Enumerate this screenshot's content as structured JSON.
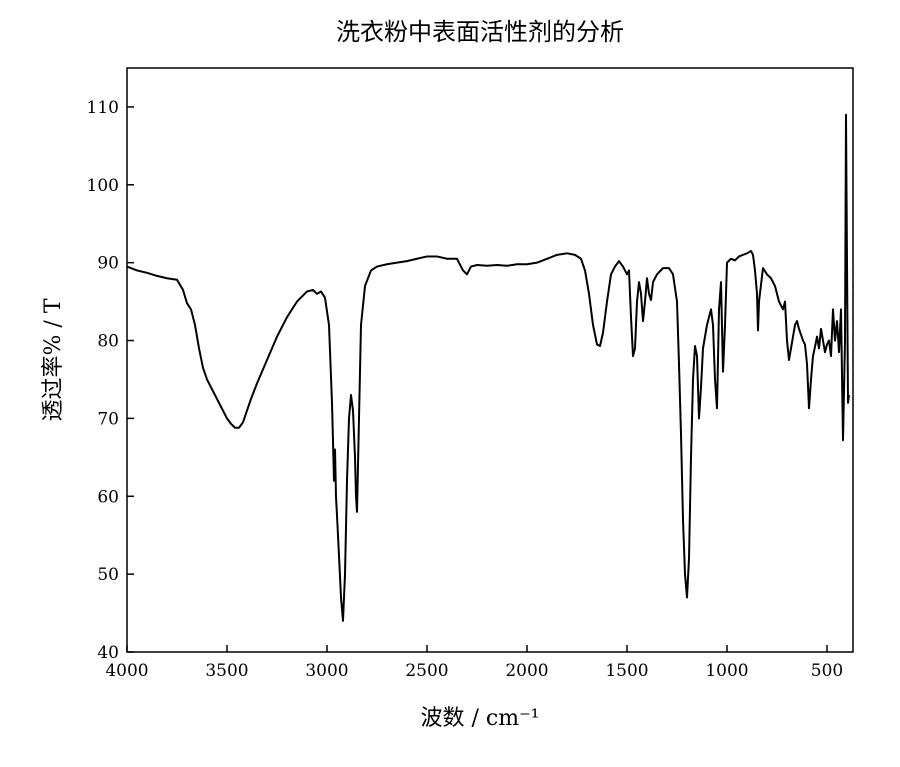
{
  "chart_data": {
    "type": "line",
    "title": "洗衣粉中表面活性剂的分析",
    "x_label": "波数 / cm⁻¹",
    "y_label": "透过率% / T",
    "color": "#000000",
    "xlim": [
      4000,
      370
    ],
    "ylim": [
      40,
      115
    ],
    "xticks": [
      4000,
      3500,
      3000,
      2500,
      2000,
      1500,
      1000,
      500
    ],
    "yticks": [
      40,
      50,
      60,
      70,
      80,
      90,
      100,
      110
    ],
    "grid": false,
    "x": [
      4000,
      3950,
      3900,
      3850,
      3800,
      3750,
      3720,
      3700,
      3680,
      3660,
      3640,
      3620,
      3600,
      3580,
      3550,
      3520,
      3500,
      3480,
      3460,
      3440,
      3420,
      3400,
      3380,
      3350,
      3300,
      3250,
      3200,
      3150,
      3100,
      3070,
      3050,
      3030,
      3010,
      2990,
      2975,
      2965,
      2960,
      2955,
      2945,
      2930,
      2920,
      2910,
      2900,
      2890,
      2880,
      2870,
      2860,
      2855,
      2850,
      2840,
      2830,
      2810,
      2780,
      2750,
      2700,
      2650,
      2600,
      2550,
      2500,
      2450,
      2400,
      2350,
      2320,
      2300,
      2280,
      2250,
      2200,
      2150,
      2100,
      2050,
      2000,
      1950,
      1900,
      1850,
      1800,
      1760,
      1730,
      1710,
      1690,
      1670,
      1650,
      1635,
      1620,
      1600,
      1580,
      1560,
      1540,
      1520,
      1500,
      1490,
      1480,
      1470,
      1460,
      1450,
      1440,
      1430,
      1420,
      1410,
      1400,
      1390,
      1380,
      1370,
      1350,
      1320,
      1290,
      1270,
      1250,
      1240,
      1230,
      1220,
      1210,
      1200,
      1190,
      1180,
      1170,
      1160,
      1150,
      1140,
      1130,
      1120,
      1100,
      1080,
      1070,
      1060,
      1050,
      1040,
      1030,
      1020,
      1010,
      1000,
      980,
      960,
      940,
      920,
      900,
      880,
      870,
      860,
      850,
      845,
      840,
      820,
      800,
      780,
      760,
      740,
      720,
      710,
      700,
      690,
      680,
      660,
      650,
      640,
      620,
      610,
      600,
      590,
      580,
      570,
      560,
      550,
      540,
      530,
      520,
      510,
      500,
      490,
      480,
      470,
      460,
      450,
      440,
      430,
      420,
      410,
      405,
      400,
      395,
      390
    ],
    "values": [
      89.5,
      89,
      88.7,
      88.3,
      88,
      87.8,
      86.5,
      84.8,
      84,
      82,
      79,
      76.5,
      75,
      74,
      72.5,
      71,
      70,
      69.3,
      68.8,
      68.8,
      69.5,
      71,
      72.5,
      74.5,
      77.5,
      80.5,
      83,
      85,
      86.3,
      86.5,
      86,
      86.3,
      85.5,
      82,
      72,
      62,
      66,
      60,
      55,
      47,
      44,
      50,
      62,
      70,
      73,
      71,
      65,
      60,
      58,
      70,
      82,
      87,
      89,
      89.5,
      89.8,
      90,
      90.2,
      90.5,
      90.8,
      90.8,
      90.5,
      90.5,
      89,
      88.5,
      89.5,
      89.7,
      89.6,
      89.7,
      89.6,
      89.8,
      89.8,
      90,
      90.5,
      91,
      91.2,
      91,
      90.5,
      89,
      86,
      82,
      79.5,
      79.3,
      81,
      85,
      88.5,
      89.5,
      90.2,
      89.5,
      88.5,
      89,
      83,
      78,
      79,
      85,
      87.5,
      86,
      82.5,
      85,
      88,
      86,
      85.2,
      87.5,
      88.5,
      89.3,
      89.3,
      88.5,
      85,
      77,
      68,
      57,
      50,
      47,
      52,
      65,
      75,
      79.3,
      78,
      70,
      74,
      79,
      82,
      84,
      82,
      75,
      71.3,
      84,
      87.5,
      76,
      82,
      90,
      90.5,
      90.3,
      90.8,
      91,
      91.2,
      91.5,
      91,
      89,
      86,
      81.3,
      85,
      89.3,
      88.5,
      88,
      87,
      85,
      84,
      85,
      80,
      77.5,
      79,
      82,
      82.5,
      81.5,
      80,
      79.5,
      77,
      71.3,
      75,
      78,
      79.2,
      80.5,
      79,
      81.5,
      80,
      78.5,
      79.5,
      80,
      78,
      84,
      80,
      82.5,
      78.5,
      84,
      67.2,
      80,
      109,
      90,
      72,
      73
    ]
  }
}
